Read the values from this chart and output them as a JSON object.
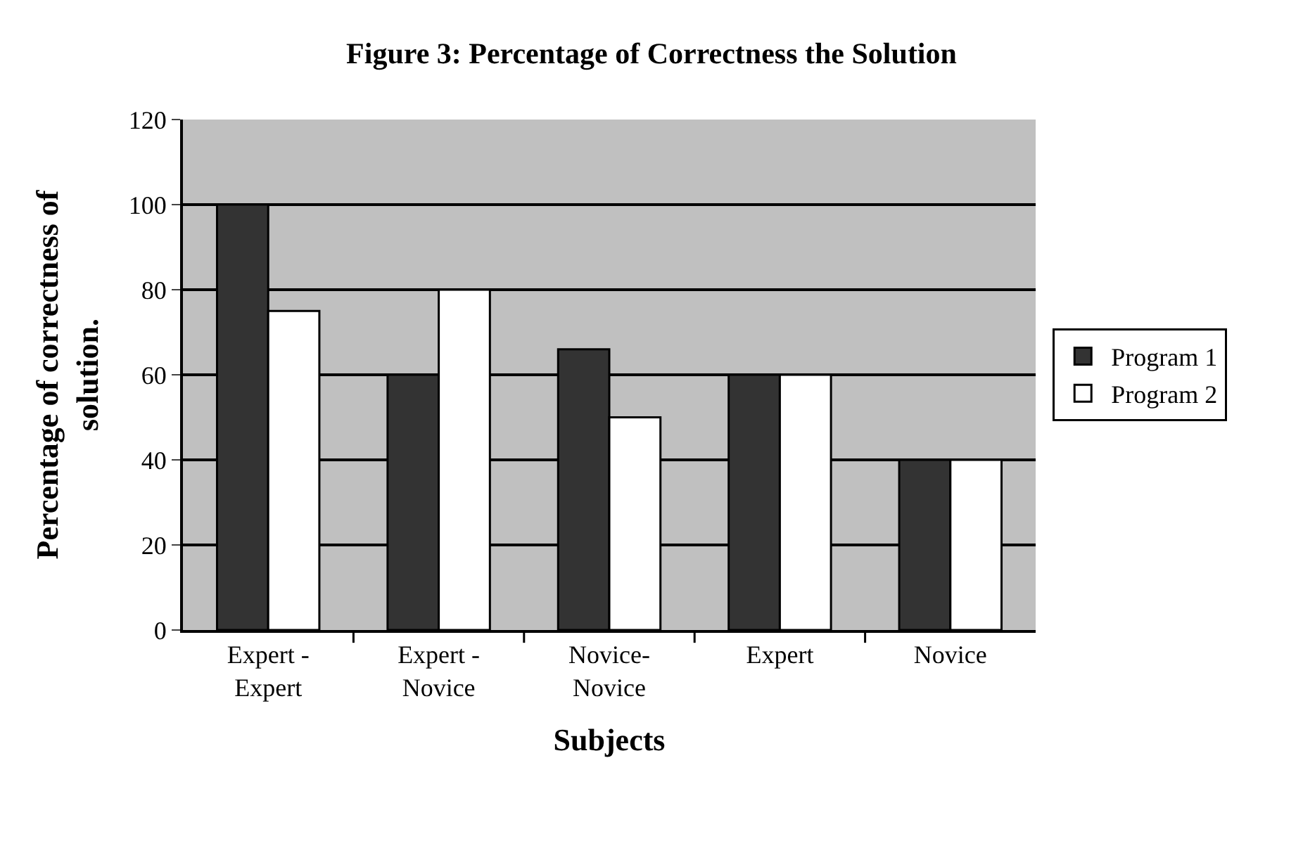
{
  "chart_data": {
    "type": "bar",
    "title": "Figure 3: Percentage of Correctness the Solution",
    "xlabel": "Subjects",
    "ylabel": "Percentage of correctness of\nsolution.",
    "categories": [
      "Expert -\nExpert",
      "Expert -\nNovice",
      "Novice-\nNovice",
      "Expert",
      "Novice"
    ],
    "series": [
      {
        "name": "Program 1",
        "color": "#333333",
        "values": [
          100,
          60,
          66,
          60,
          40
        ]
      },
      {
        "name": "Program 2",
        "color": "#ffffff",
        "values": [
          75,
          80,
          50,
          60,
          40
        ]
      }
    ],
    "ylim": [
      0,
      120
    ],
    "yticks": [
      0,
      20,
      40,
      60,
      80,
      100,
      120
    ],
    "grid": "y",
    "legend": "right"
  }
}
